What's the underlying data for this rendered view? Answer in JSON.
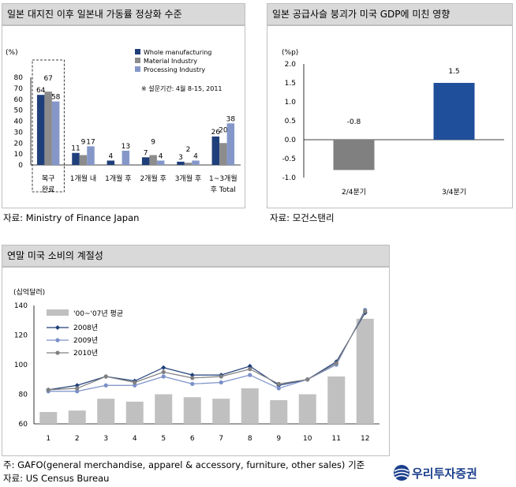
{
  "panel1": {
    "title": "일본 대지진 이후 일본내 가동률 정상화 수준",
    "source": "자료: Ministry of Finance Japan"
  },
  "panel2": {
    "title": "일본 공급사슬 붕괴가 미국 GDP에 미친 영향",
    "source": "자료: 모건스탠리"
  },
  "panel3": {
    "title": "연말 미국 소비의 계절성",
    "note": "주: GAFO(general merchandise, apparel & accessory, furniture, other sales) 기준",
    "source": "자료: US Census Bureau"
  },
  "logo": {
    "text": "우리투자증권"
  },
  "colors": {
    "series1": "#1f3f7a",
    "series2": "#8c8c8c",
    "series3": "#8597c9",
    "neg_bar": "#808080",
    "pos_bar": "#1f4f9b",
    "avg_bar": "#c0c0c0",
    "line2008": "#1f3f7a",
    "line2009": "#7a90c8",
    "line2010": "#808080"
  },
  "chart_data": [
    {
      "type": "bar",
      "unit_label": "(%)",
      "categories": [
        "복구 완료",
        "1개월 내",
        "1개월 후",
        "2개월 후",
        "3개월 후",
        "1~3개월 후 Total"
      ],
      "series": [
        {
          "name": "Whole manufacturing",
          "values": [
            64,
            11,
            4,
            7,
            3,
            26
          ]
        },
        {
          "name": "Material Industry",
          "values": [
            67,
            9,
            null,
            9,
            2,
            20
          ]
        },
        {
          "name": "Processing Industry",
          "values": [
            58,
            17,
            13,
            4,
            4,
            38
          ]
        }
      ],
      "ylim": [
        0,
        80
      ],
      "yticks": [
        0,
        10,
        20,
        30,
        40,
        50,
        60,
        70,
        80
      ],
      "annotation": "※ 설문기간: 4월 8-15, 2011",
      "legend": "top-right"
    },
    {
      "type": "bar",
      "unit_label": "(%p)",
      "categories": [
        "2/4분기",
        "3/4분기"
      ],
      "values": [
        -0.8,
        1.5
      ],
      "ylim": [
        -1.0,
        2.0
      ],
      "yticks": [
        "2.0",
        "1.5",
        "1.0",
        "0.5",
        "0.0",
        "-0.5",
        "-1.0"
      ]
    },
    {
      "type": "bar",
      "unit_label": "(십억달러)",
      "categories": [
        "1",
        "2",
        "3",
        "4",
        "5",
        "6",
        "7",
        "8",
        "9",
        "10",
        "11",
        "12"
      ],
      "series": [
        {
          "name": "'00~'07년 평균",
          "type": "bar",
          "values": [
            68,
            69,
            77,
            75,
            80,
            78,
            77,
            84,
            76,
            80,
            92,
            131
          ]
        },
        {
          "name": "2008년",
          "type": "line",
          "values": [
            83,
            86,
            92,
            89,
            98,
            93,
            93,
            99,
            86,
            90,
            102,
            135
          ]
        },
        {
          "name": "2009년",
          "type": "line",
          "values": [
            82,
            82,
            86,
            86,
            92,
            87,
            88,
            93,
            84,
            90,
            100,
            137
          ]
        },
        {
          "name": "2010년",
          "type": "line",
          "values": [
            83,
            84,
            92,
            88,
            95,
            91,
            92,
            97,
            87,
            90,
            101,
            136
          ]
        }
      ],
      "ylim": [
        60,
        140
      ],
      "yticks": [
        60,
        80,
        100,
        120,
        140
      ],
      "legend": "top-left"
    }
  ]
}
